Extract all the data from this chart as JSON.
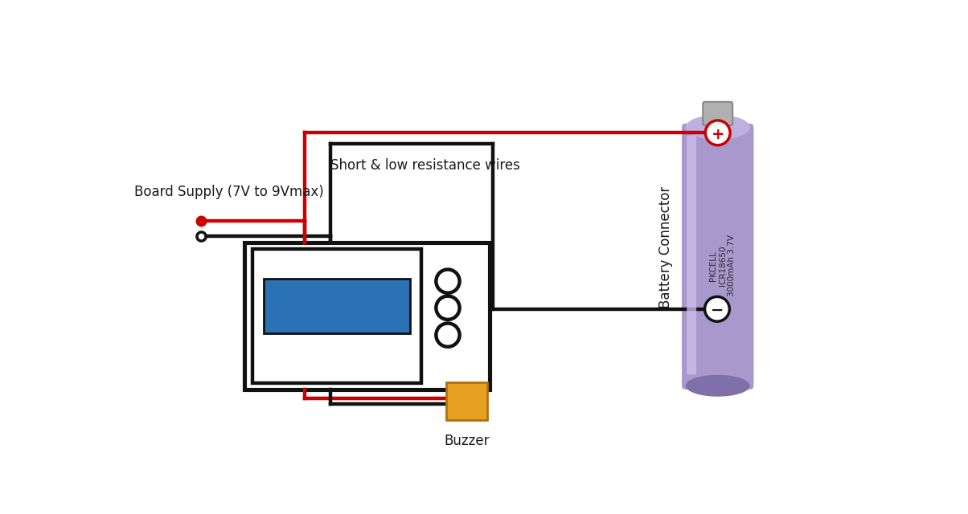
{
  "bg_color": "#ffffff",
  "text_color": "#1a1a1a",
  "wire_red": "#cc0000",
  "wire_black": "#111111",
  "lcd_color": "#2a72b5",
  "battery_color": "#a898cc",
  "battery_highlight": "#c0b0e0",
  "battery_shadow": "#8070aa",
  "battery_metal": "#b0b0b0",
  "buzzer_color": "#e8a020",
  "label_supply": "Board Supply (7V to 9Vmax)",
  "label_wires": "Short & low resistance wires",
  "label_battery_connector": "Battery Connector",
  "label_buzzer": "Buzzer",
  "lw": 3.2
}
